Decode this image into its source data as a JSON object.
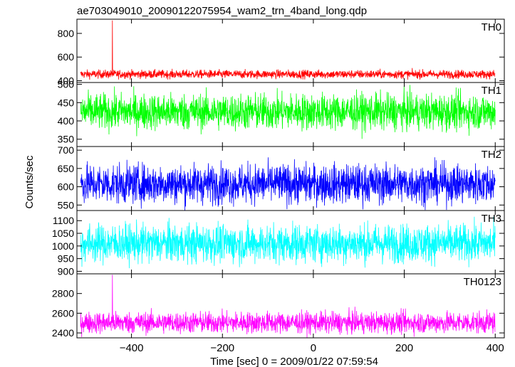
{
  "title": "ae703049010_20090122075954_wam2_trn_4band_long.qdp",
  "xlabel": "Time [sec] 0 = 2009/01/22 07:59:54",
  "ylabel": "Counts/sec",
  "chart_data": {
    "type": "line",
    "title": "ae703049010_20090122075954_wam2_trn_4band_long.qdp",
    "xlabel": "Time [sec] 0 = 2009/01/22 07:59:54",
    "ylabel": "Counts/sec",
    "xlim": [
      -520,
      420
    ],
    "xticks": [
      -400,
      -200,
      0,
      200,
      400
    ],
    "x_start": -512,
    "x_end": 400,
    "panels": [
      {
        "name": "TH0",
        "color": "#ff0000",
        "ylim": [
          385,
          920
        ],
        "yticks": [
          400,
          600,
          800
        ],
        "mean": 455,
        "noise": 18,
        "spike": {
          "x": -442,
          "y": 910
        }
      },
      {
        "name": "TH1",
        "color": "#00ff00",
        "ylim": [
          330,
          505
        ],
        "yticks": [
          350,
          400,
          450,
          500
        ],
        "mean": 425,
        "noise": 25
      },
      {
        "name": "TH2",
        "color": "#0000ff",
        "ylim": [
          535,
          710
        ],
        "yticks": [
          550,
          600,
          650,
          700
        ],
        "mean": 608,
        "noise": 27
      },
      {
        "name": "TH3",
        "color": "#00ffff",
        "ylim": [
          890,
          1140
        ],
        "yticks": [
          900,
          950,
          1000,
          1050,
          1100
        ],
        "mean": 1010,
        "noise": 38
      },
      {
        "name": "TH0123",
        "color": "#ff00ff",
        "ylim": [
          2350,
          3000
        ],
        "yticks": [
          2400,
          2600,
          2800
        ],
        "mean": 2505,
        "noise": 55,
        "spike": {
          "x": -442,
          "y": 2990
        }
      }
    ]
  }
}
